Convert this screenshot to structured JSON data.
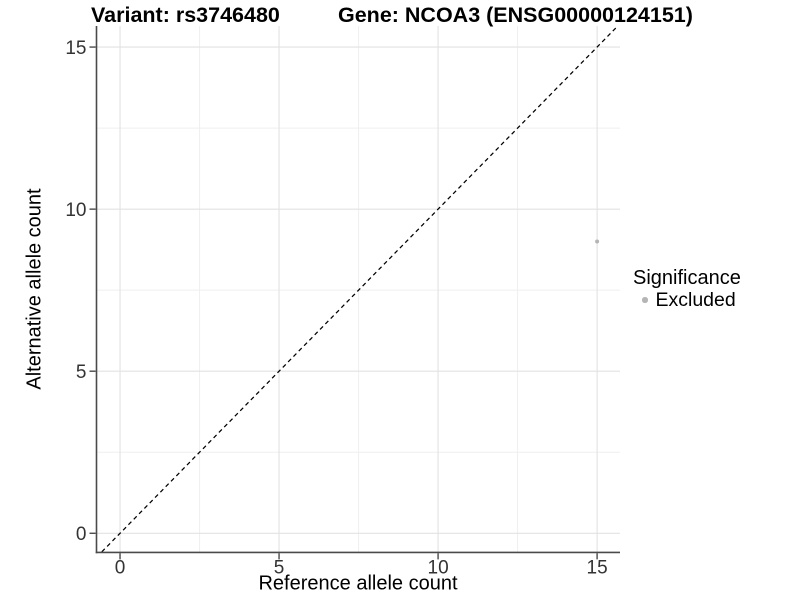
{
  "chart_data": {
    "type": "scatter",
    "titles": {
      "left": "Variant: rs3746480",
      "right": "Gene: NCOA3 (ENSG00000124151)"
    },
    "xlabel": "Reference allele count",
    "ylabel": "Alternative allele count",
    "xlim": [
      -0.74,
      15.72
    ],
    "ylim": [
      -0.59,
      15.65
    ],
    "xticks": [
      0,
      5,
      10,
      15
    ],
    "yticks": [
      0,
      5,
      10,
      15
    ],
    "xminor": [
      2.5,
      7.5,
      12.5
    ],
    "yminor": [
      2.5,
      7.5,
      12.5
    ],
    "grid": "major+minor",
    "identity_line": {
      "slope": 1,
      "intercept": 0,
      "style": "dashed",
      "color": "#000000"
    },
    "series": [
      {
        "name": "Excluded",
        "color": "#b5b5b5",
        "marker_radius": 2,
        "points": [
          {
            "x": 15,
            "y": 9
          }
        ]
      }
    ],
    "legend": {
      "title": "Significance",
      "position": "right",
      "entries": [
        {
          "label": "Excluded",
          "color": "#b5b5b5"
        }
      ]
    },
    "style": {
      "background": "#ffffff",
      "grid_major": "#e2e2e2",
      "grid_minor": "#efefef",
      "axis_line": "#4a4a4a",
      "tick_label_color": "#333333"
    }
  }
}
